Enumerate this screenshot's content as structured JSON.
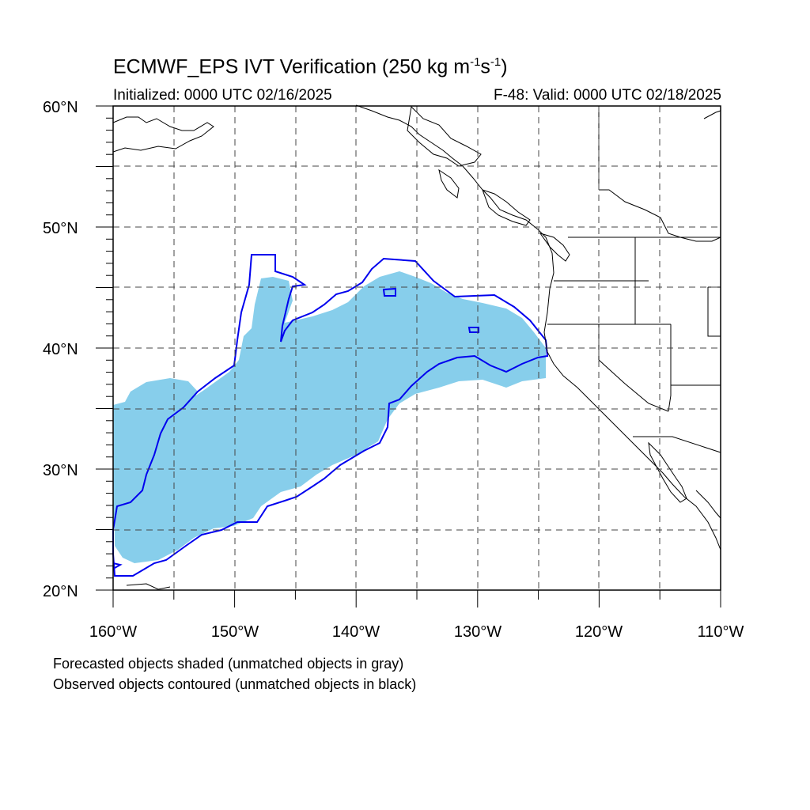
{
  "header": {
    "title_main": "ECMWF_EPS IVT Verification (250 kg m",
    "title_exp1": "-1",
    "title_mid": "s",
    "title_exp2": "-1",
    "title_end": ")",
    "initialized": "Initialized: 0000 UTC 02/16/2025",
    "valid": "F-48: Valid: 0000 UTC 02/18/2025"
  },
  "map": {
    "lon_range": [
      -160,
      -110
    ],
    "lat_range": [
      20,
      60
    ],
    "lat_labels": [
      "60°N",
      "50°N",
      "40°N",
      "30°N",
      "20°N"
    ],
    "lon_labels": [
      "160°W",
      "150°W",
      "140°W",
      "130°W",
      "120°W",
      "110°W"
    ],
    "forecast_fill_color": "#87ceeb",
    "observed_contour_color": "#0000ee",
    "coast_color": "#000000",
    "grid_style": "dashed"
  },
  "footnotes": {
    "line1": "Forecasted objects shaded (unmatched objects in gray)",
    "line2": "Observed objects contoured (unmatched objects in black)"
  }
}
